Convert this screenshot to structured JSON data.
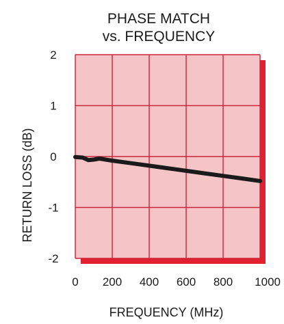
{
  "chart_data": {
    "type": "line",
    "title": [
      "PHASE MATCH",
      "vs. FREQUENCY"
    ],
    "xlabel": "FREQUENCY (MHz)",
    "ylabel": "RETURN LOSS (dB)",
    "xlim": [
      0,
      1000
    ],
    "ylim": [
      -2,
      2
    ],
    "x_ticks": [
      "0",
      "200",
      "400",
      "600",
      "800",
      "1000"
    ],
    "x_tick_values": [
      0,
      200,
      400,
      600,
      800,
      1000
    ],
    "y_ticks": [
      "2",
      "1",
      "0",
      "-1",
      "-2"
    ],
    "y_tick_values": [
      2,
      1,
      0,
      -1,
      -2
    ],
    "grid": true,
    "series": [
      {
        "x": [
          0,
          40,
          70,
          100,
          130,
          200,
          300,
          400,
          500,
          600,
          700,
          800,
          900,
          1000
        ],
        "y": [
          -0.01,
          -0.02,
          -0.07,
          -0.06,
          -0.04,
          -0.08,
          -0.13,
          -0.18,
          -0.23,
          -0.28,
          -0.33,
          -0.38,
          -0.43,
          -0.48
        ],
        "color": "#1a1a1a"
      }
    ],
    "colors": {
      "plot_background": "#f4c4c6",
      "grid": "#c8243a",
      "frame_shadow": "#e3202f",
      "line": "#1a1a1a"
    }
  }
}
